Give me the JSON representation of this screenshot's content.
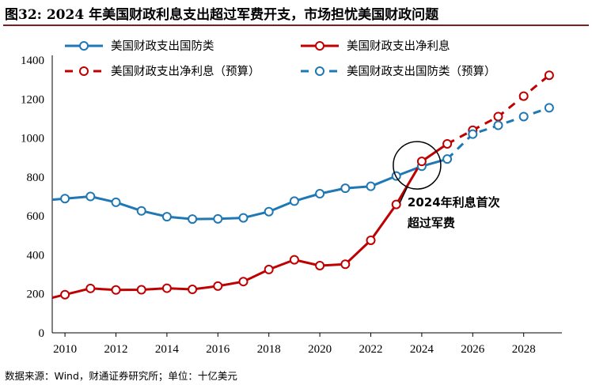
{
  "header": {
    "title": "图32: 2024 年美国财政利息支出超过军费开支，市场担忧美国财政问题"
  },
  "footer": {
    "source": "数据来源：Wind，财通证券研究所；单位：十亿美元"
  },
  "chart_data": {
    "type": "line",
    "title": "",
    "xlabel": "",
    "ylabel": "",
    "xlim": [
      2009.5,
      2029.5
    ],
    "ylim": [
      0,
      1400
    ],
    "x_ticks": [
      "2010",
      "2012",
      "2014",
      "2016",
      "2018",
      "2020",
      "2022",
      "2024",
      "2026",
      "2028"
    ],
    "y_ticks": [
      "0",
      "200",
      "400",
      "600",
      "800",
      "1000",
      "1200",
      "1400"
    ],
    "grid": false,
    "legend_position": "top",
    "series": [
      {
        "name": "美国财政支出国防类",
        "color": "#1f77b4",
        "dashed": false,
        "x": [
          2010,
          2011,
          2012,
          2013,
          2014,
          2015,
          2016,
          2017,
          2018,
          2019,
          2020,
          2021,
          2022,
          2023,
          2024,
          2025
        ],
        "y": [
          689,
          700,
          670,
          626,
          596,
          584,
          585,
          590,
          622,
          676,
          714,
          742,
          752,
          805,
          855,
          892
        ]
      },
      {
        "name": "美国财政支出净利息",
        "color": "#c00000",
        "dashed": false,
        "x": [
          2010,
          2011,
          2012,
          2013,
          2014,
          2015,
          2016,
          2017,
          2018,
          2019,
          2020,
          2021,
          2022,
          2023,
          2024,
          2025
        ],
        "y": [
          196,
          228,
          220,
          221,
          229,
          223,
          240,
          263,
          325,
          375,
          345,
          352,
          475,
          659,
          880,
          970
        ]
      },
      {
        "name": "美国财政支出净利息（预算）",
        "color": "#c00000",
        "dashed": true,
        "x": [
          2025,
          2026,
          2027,
          2028,
          2029
        ],
        "y": [
          970,
          1040,
          1110,
          1215,
          1322
        ]
      },
      {
        "name": "美国财政支出国防类（预算）",
        "color": "#1f77b4",
        "dashed": true,
        "x": [
          2025,
          2026,
          2027,
          2028,
          2029
        ],
        "y": [
          892,
          1020,
          1065,
          1110,
          1155
        ]
      }
    ],
    "annotation": {
      "lines": [
        "2024年利息首次",
        "超过军费"
      ],
      "x": 2024,
      "y": 860
    }
  }
}
